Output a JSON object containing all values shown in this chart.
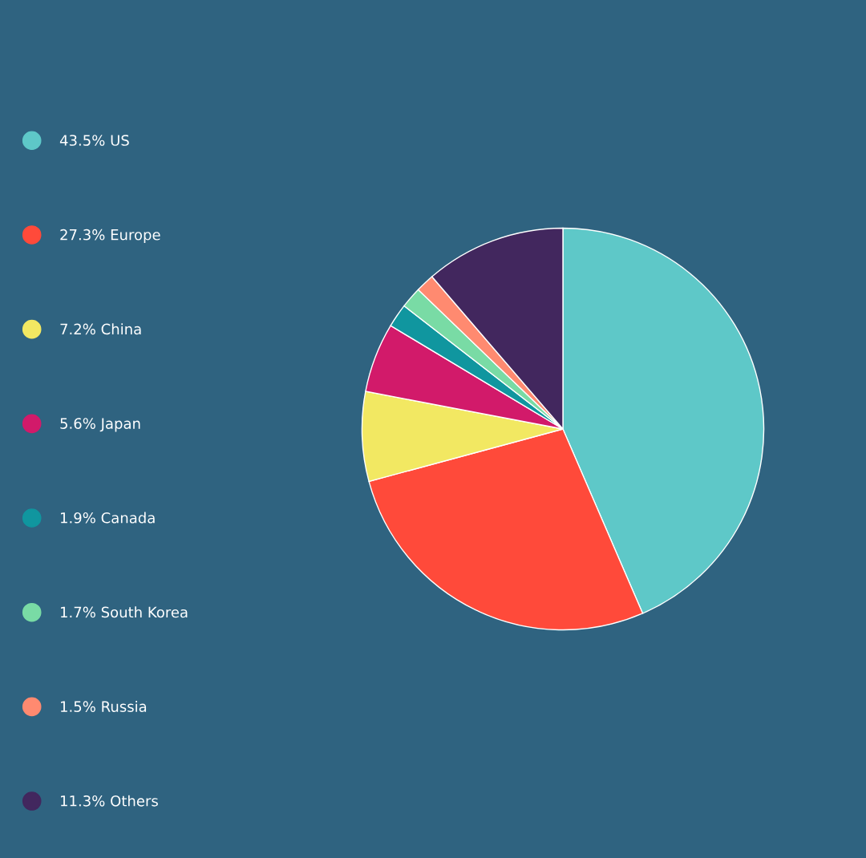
{
  "chart_data": {
    "type": "pie",
    "categories": [
      "US",
      "Europe",
      "China",
      "Japan",
      "Canada",
      "South Korea",
      "Russia",
      "Others"
    ],
    "values": [
      43.5,
      27.3,
      7.2,
      5.6,
      1.9,
      1.7,
      1.5,
      11.3
    ],
    "colors": [
      "#5ec8c8",
      "#ff4a3a",
      "#f2e862",
      "#d21a6a",
      "#10969f",
      "#79dba5",
      "#ff8a70",
      "#42275e"
    ],
    "value_labels": [
      "43.5%",
      "27.3%",
      "7.2%",
      "5.6%",
      "1.9%",
      "1.7%",
      "1.5%",
      "11.3%"
    ],
    "legend": "left"
  }
}
